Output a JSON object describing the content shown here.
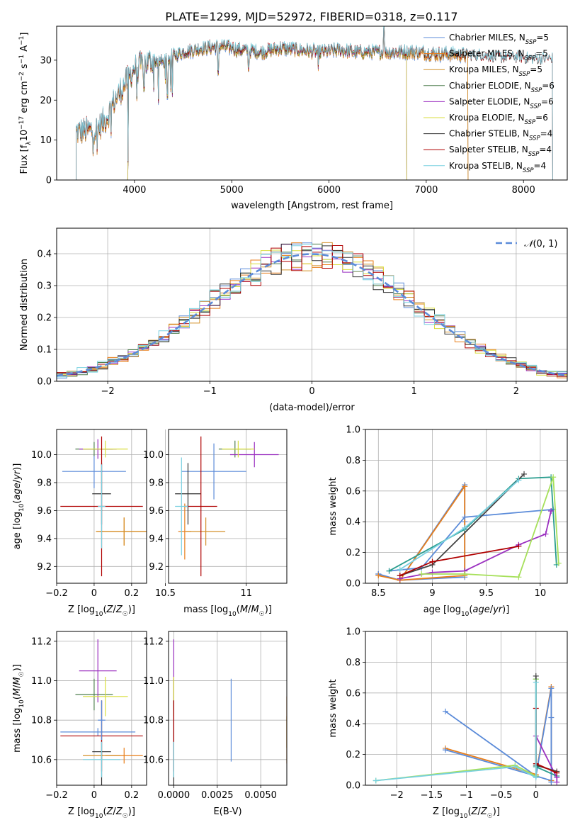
{
  "title": "PLATE=1299, MJD=52972, FIBERID=0318, z=0.117",
  "model_colors": [
    "#5b8bd9",
    "#e87e1a",
    "#d4912a",
    "#4f7f4f",
    "#9b30c0",
    "#d9dd3c",
    "#333333",
    "#b00000",
    "#78d0e0"
  ],
  "ssp_colors": [
    "#5b8bd9",
    "#e87e1a",
    "#5b8bd9",
    "#2a9d8f",
    "#9b30c0",
    "#a6e05a",
    "#444444",
    "#b00000",
    "#78d0e0"
  ],
  "chart_data": [
    {
      "type": "line",
      "xlabel": "wavelength [Angstrom, rest frame]",
      "ylabel": "Flux [f_λ10^-17 erg cm^-2 s^-1 A^-1]",
      "xlim": [
        3200,
        8450
      ],
      "ylim": [
        0,
        38.5
      ],
      "xticks": [
        4000,
        5000,
        6000,
        7000,
        8000
      ],
      "yticks": [
        0,
        10,
        20,
        30
      ],
      "legend_position": "top-right",
      "grid": false,
      "continuum": {
        "x": [
          3400,
          3600,
          3700,
          3800,
          3900,
          4000,
          4100,
          4200,
          4300,
          4400,
          4500,
          4700,
          4900,
          5100,
          5300,
          5500,
          5700,
          5900,
          6100,
          6300,
          6500,
          6700,
          6900,
          7100,
          7300,
          7500,
          7700,
          7900,
          8100
        ],
        "y": [
          12,
          12.5,
          15,
          20,
          24,
          28,
          29,
          30,
          29.5,
          31,
          32,
          33,
          33.5,
          32.5,
          32,
          33,
          32.5,
          32,
          32.5,
          32,
          32,
          32,
          32,
          31.5,
          31.5,
          31,
          30.5,
          30.5,
          30
        ]
      },
      "emission_lines": [
        {
          "x": 6563,
          "y": 38
        },
        {
          "x": 5007,
          "y": 33
        }
      ],
      "absorption_lines": [
        {
          "x": 3934,
          "y": 4
        },
        {
          "x": 4102,
          "y": 23
        },
        {
          "x": 4340,
          "y": 21
        },
        {
          "x": 4861,
          "y": 27
        },
        {
          "x": 5175,
          "y": 28
        },
        {
          "x": 5890,
          "y": 28
        }
      ],
      "series": [
        {
          "name": "Chabrier MILES, N_SSP=5",
          "label_main": "Chabrier MILES, N",
          "label_sub": "SSP",
          "label_tail": "=5",
          "range": [
            3400,
            7430
          ]
        },
        {
          "name": "Salpeter MILES, N_SSP=5",
          "label_main": "Salpeter MILES, N",
          "label_sub": "SSP",
          "label_tail": "=5",
          "range": [
            3400,
            7430
          ]
        },
        {
          "name": "Kroupa MILES, N_SSP=5",
          "label_main": "Kroupa MILES, N",
          "label_sub": "SSP",
          "label_tail": "=5",
          "range": [
            3400,
            7430
          ]
        },
        {
          "name": "Chabrier ELODIE, N_SSP=6",
          "label_main": "Chabrier ELODIE, N",
          "label_sub": "SSP",
          "label_tail": "=6",
          "range": [
            3930,
            6800
          ]
        },
        {
          "name": "Salpeter ELODIE, N_SSP=6",
          "label_main": "Salpeter ELODIE, N",
          "label_sub": "SSP",
          "label_tail": "=6",
          "range": [
            3930,
            6800
          ]
        },
        {
          "name": "Kroupa ELODIE, N_SSP=6",
          "label_main": "Kroupa ELODIE, N",
          "label_sub": "SSP",
          "label_tail": "=6",
          "range": [
            3930,
            6800
          ]
        },
        {
          "name": "Chabrier STELIB, N_SSP=4",
          "label_main": "Chabrier STELIB, N",
          "label_sub": "SSP",
          "label_tail": "=4",
          "range": [
            3400,
            8300
          ]
        },
        {
          "name": "Salpeter STELIB, N_SSP=4",
          "label_main": "Salpeter STELIB, N",
          "label_sub": "SSP",
          "label_tail": "=4",
          "range": [
            3400,
            8300
          ]
        },
        {
          "name": "Kroupa STELIB, N_SSP=4",
          "label_main": "Kroupa STELIB, N",
          "label_sub": "SSP",
          "label_tail": "=4",
          "range": [
            3400,
            8300
          ]
        }
      ]
    },
    {
      "type": "step-histogram",
      "xlabel": "(data-model)/error",
      "ylabel": "Normed distribution",
      "xlim": [
        -2.5,
        2.5
      ],
      "ylim": [
        0,
        0.48
      ],
      "xticks": [
        -2,
        -1,
        0,
        1,
        2
      ],
      "yticks": [
        0.0,
        0.1,
        0.2,
        0.3,
        0.4
      ],
      "grid": true,
      "legend_position": "top-right",
      "reference_curve": {
        "name": "N(0,1)",
        "label": "𝒩(0, 1)",
        "color": "#5b8bd9"
      },
      "bins": [
        -2.5,
        2.5,
        50
      ]
    },
    {
      "type": "scatter-errorbar",
      "xlabel": "Z [log10(Z/Z☉)]",
      "ylabel": "age [log10(age/yr)]",
      "xlim": [
        -0.2,
        0.28
      ],
      "ylim": [
        9.08,
        10.18
      ],
      "xticks": [
        -0.2,
        0.0,
        0.2
      ],
      "yticks": [
        9.2,
        9.4,
        9.6,
        9.8,
        10.0
      ],
      "grid": true,
      "points": [
        {
          "x": 0.0,
          "xerr": 0.17,
          "y": 9.88,
          "yerr": 0.12
        },
        {
          "x": 0.16,
          "xerr": 0.15,
          "y": 9.45,
          "yerr": 0.1
        },
        {
          "x": 0.16,
          "xerr": 0.15,
          "y": 9.45,
          "yerr": 0.1
        },
        {
          "x": 0.0,
          "xerr": 0.1,
          "y": 10.04,
          "yerr": 0.05
        },
        {
          "x": 0.02,
          "xerr": 0.1,
          "y": 10.04,
          "yerr": 0.07
        },
        {
          "x": 0.06,
          "xerr": 0.12,
          "y": 10.04,
          "yerr": 0.06
        },
        {
          "x": 0.04,
          "xerr": 0.05,
          "y": 9.72,
          "yerr": 0.22
        },
        {
          "x": 0.04,
          "xerr": 0.22,
          "y": 9.63,
          "yerr": 0.5
        },
        {
          "x": 0.04,
          "xerr": 0.02,
          "y": 9.63,
          "yerr": 0.3
        }
      ]
    },
    {
      "type": "scatter-errorbar",
      "xlabel": "mass [log10(M/M☉)]",
      "ylabel": "",
      "xlim": [
        10.52,
        11.25
      ],
      "ylim": [
        9.08,
        10.18
      ],
      "xticks": [
        10.5,
        11.0
      ],
      "yticks": [
        9.2,
        9.4,
        9.6,
        9.8,
        10.0
      ],
      "grid": true,
      "points": [
        {
          "x": 10.8,
          "xerr": 0.2,
          "y": 9.88,
          "yerr": 0.2
        },
        {
          "x": 10.62,
          "xerr": 0.04,
          "y": 9.45,
          "yerr": 0.2
        },
        {
          "x": 10.75,
          "xerr": 0.12,
          "y": 9.45,
          "yerr": 0.1
        },
        {
          "x": 10.93,
          "xerr": 0.1,
          "y": 10.04,
          "yerr": 0.06
        },
        {
          "x": 11.05,
          "xerr": 0.15,
          "y": 10.0,
          "yerr": 0.09
        },
        {
          "x": 10.95,
          "xerr": 0.1,
          "y": 10.04,
          "yerr": 0.06
        },
        {
          "x": 10.64,
          "xerr": 0.08,
          "y": 9.72,
          "yerr": 0.22
        },
        {
          "x": 10.72,
          "xerr": 0.1,
          "y": 9.63,
          "yerr": 0.5
        },
        {
          "x": 10.6,
          "xerr": 0.04,
          "y": 9.63,
          "yerr": 0.35
        }
      ]
    },
    {
      "type": "line",
      "xlabel": "age [log10(age/yr)]",
      "ylabel": "mass weight",
      "xlim": [
        8.38,
        10.25
      ],
      "ylim": [
        0.0,
        1.0
      ],
      "xticks": [
        8.5,
        9.0,
        9.5,
        10.0
      ],
      "yticks": [
        0.0,
        0.2,
        0.4,
        0.6,
        0.8,
        1.0
      ],
      "grid": true,
      "series": [
        {
          "x": [
            8.5,
            8.7,
            9.3,
            9.3,
            9.3,
            8.7,
            8.5
          ],
          "y": [
            0.06,
            0.02,
            0.64,
            0.4,
            0.04,
            0.02,
            0.06
          ]
        },
        {
          "x": [
            8.5,
            8.7,
            9.3,
            9.3,
            8.7
          ],
          "y": [
            0.05,
            0.02,
            0.63,
            0.05,
            0.02
          ]
        },
        {
          "x": [
            8.6,
            8.9,
            9.3,
            10.12,
            10.1
          ],
          "y": [
            0.08,
            0.1,
            0.43,
            0.48,
            0.47
          ]
        },
        {
          "x": [
            8.6,
            9.3,
            9.8,
            10.1,
            10.15
          ],
          "y": [
            0.08,
            0.35,
            0.68,
            0.69,
            0.12
          ]
        },
        {
          "x": [
            8.7,
            9.0,
            9.3,
            9.8,
            10.05,
            10.1
          ],
          "y": [
            0.03,
            0.07,
            0.08,
            0.25,
            0.32,
            0.47
          ]
        },
        {
          "x": [
            8.9,
            9.3,
            9.8,
            10.12,
            10.17
          ],
          "y": [
            0.06,
            0.06,
            0.04,
            0.69,
            0.13
          ]
        },
        {
          "x": [
            8.7,
            9.0,
            9.85
          ],
          "y": [
            0.05,
            0.12,
            0.71
          ]
        },
        {
          "x": [
            8.7,
            9.0,
            9.8
          ],
          "y": [
            0.05,
            0.14,
            0.24
          ]
        },
        {
          "x": [
            8.7,
            9.3,
            9.8
          ],
          "y": [
            0.09,
            0.36,
            0.67
          ]
        }
      ]
    },
    {
      "type": "scatter-errorbar",
      "xlabel": "Z [log10(Z/Z☉)]",
      "ylabel": "mass [log10(M/M☉)]",
      "xlim": [
        -0.2,
        0.28
      ],
      "ylim": [
        10.47,
        11.25
      ],
      "xticks": [
        -0.2,
        0.0,
        0.2
      ],
      "yticks": [
        10.6,
        10.8,
        11.0,
        11.2
      ],
      "grid": true,
      "points": [
        {
          "x": 0.02,
          "xerr": 0.2,
          "y": 10.74,
          "yerr": 0.02
        },
        {
          "x": 0.16,
          "xerr": 0.1,
          "y": 10.62,
          "yerr": 0.04
        },
        {
          "x": 0.04,
          "xerr": 0.1,
          "y": 10.62,
          "yerr": 0.02
        },
        {
          "x": 0.0,
          "xerr": 0.1,
          "y": 10.93,
          "yerr": 0.08
        },
        {
          "x": 0.02,
          "xerr": 0.1,
          "y": 11.05,
          "yerr": 0.16
        },
        {
          "x": 0.06,
          "xerr": 0.12,
          "y": 10.92,
          "yerr": 0.1
        },
        {
          "x": 0.04,
          "xerr": 0.05,
          "y": 10.64,
          "yerr": 0.26
        },
        {
          "x": 0.04,
          "xerr": 0.22,
          "y": 10.72,
          "yerr": 0.18
        },
        {
          "x": 0.04,
          "xerr": 0.1,
          "y": 10.6,
          "yerr": 0.09
        },
        {
          "x": 0.04,
          "xerr": 0.02,
          "y": 10.8,
          "yerr": 0.1
        }
      ]
    },
    {
      "type": "scatter-errorbar",
      "xlabel": "E(B-V)",
      "ylabel": "",
      "xlim": [
        -0.0003,
        0.0065
      ],
      "ylim": [
        10.47,
        11.25
      ],
      "xticks": [
        0.0,
        0.0025,
        0.005
      ],
      "xticklabels": [
        "0.0000",
        "0.0025",
        "0.0050"
      ],
      "yticks": [
        10.6,
        10.8,
        11.0,
        11.2
      ],
      "grid": true,
      "points": [
        {
          "x": 0.0033,
          "y": 10.8,
          "yerr": 0.21
        },
        {
          "x": 0.0065,
          "y": 10.75,
          "yerr": 0.17
        },
        {
          "x": 0.0065,
          "y": 10.74,
          "yerr": 0.08
        },
        {
          "x": 0.0,
          "y": 10.93,
          "yerr": 0.08
        },
        {
          "x": 0.0,
          "y": 11.05,
          "yerr": 0.16
        },
        {
          "x": 0.0,
          "y": 10.92,
          "yerr": 0.1
        },
        {
          "x": 0.0,
          "y": 10.64,
          "yerr": 0.26
        },
        {
          "x": 0.0,
          "y": 10.72,
          "yerr": 0.18
        },
        {
          "x": 0.0,
          "y": 10.6,
          "yerr": 0.09
        }
      ]
    },
    {
      "type": "line",
      "xlabel": "Z [log10(Z/Z☉)]",
      "ylabel": "mass weight",
      "xlim": [
        -2.45,
        0.45
      ],
      "ylim": [
        0.0,
        1.0
      ],
      "xticks": [
        -2.0,
        -1.5,
        -1.0,
        -0.5,
        0.0
      ],
      "yticks": [
        0.0,
        0.2,
        0.4,
        0.6,
        0.8,
        1.0
      ],
      "grid": true,
      "series": [
        {
          "x": [
            -1.3,
            0.0,
            0.22,
            0.22
          ],
          "y": [
            0.48,
            0.06,
            0.03,
            0.44
          ]
        },
        {
          "x": [
            -1.3,
            0.0,
            0.22,
            0.22
          ],
          "y": [
            0.24,
            0.07,
            0.64,
            0.03
          ]
        },
        {
          "x": [
            -1.3,
            0.0,
            0.22,
            0.22
          ],
          "y": [
            0.23,
            0.06,
            0.63,
            0.02
          ]
        },
        {
          "x": [
            0.0,
            0.0,
            0.3
          ],
          "y": [
            0.69,
            0.12,
            0.06
          ]
        },
        {
          "x": [
            0.0,
            0.3,
            0.3
          ],
          "y": [
            0.32,
            0.05,
            0.02
          ]
        },
        {
          "x": [
            -2.3,
            -0.3,
            0.0,
            0.0
          ],
          "y": [
            0.03,
            0.13,
            0.06,
            0.69
          ]
        },
        {
          "x": [
            0.0,
            0.0,
            0.3
          ],
          "y": [
            0.71,
            0.13,
            0.09
          ]
        },
        {
          "x": [
            0.0,
            0.0,
            0.3
          ],
          "y": [
            0.5,
            0.14,
            0.08
          ]
        },
        {
          "x": [
            -2.3,
            -0.3,
            0.0,
            0.0
          ],
          "y": [
            0.03,
            0.12,
            0.05,
            0.67
          ]
        }
      ]
    }
  ]
}
